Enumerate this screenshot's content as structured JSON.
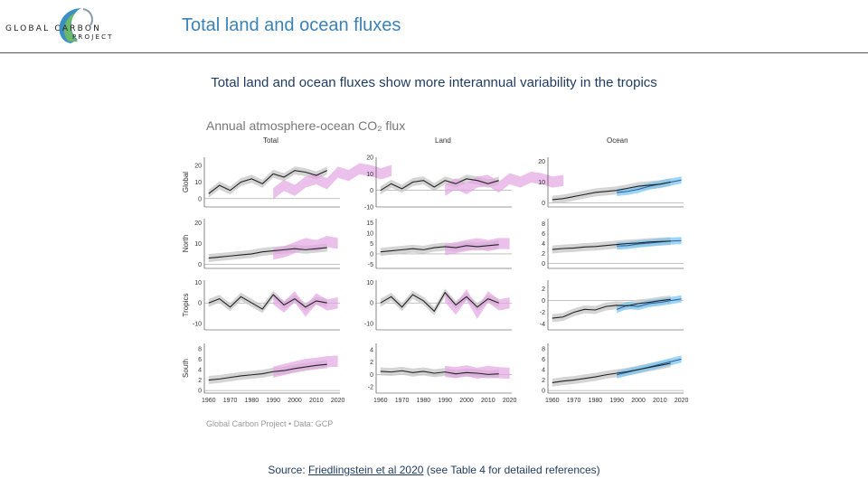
{
  "logo": {
    "line1": "GLOBAL CARBON",
    "line2": "PROJECT",
    "colors": [
      "#3b8fc4",
      "#6cb86a",
      "#8a9aa8"
    ]
  },
  "header": {
    "title": "Total land and ocean fluxes"
  },
  "subtitle": "Total land and ocean fluxes show more interannual variability in the tropics",
  "source": {
    "prefix": "Source: ",
    "link_text": "Friedlingstein et al 2020",
    "suffix": " (see Table 4 for detailed references)"
  },
  "chart_data": {
    "type": "line",
    "title": "Annual atmosphere-ocean CO₂ flux",
    "credit": "Global Carbon Project • Data: GCP",
    "columns": [
      "Total",
      "Land",
      "Ocean"
    ],
    "rows": [
      "Global",
      "North",
      "Tropics",
      "South"
    ],
    "x_ticks": [
      1960,
      1970,
      1980,
      1990,
      2000,
      2010,
      2020
    ],
    "xlim": [
      1958,
      2021
    ],
    "colors": {
      "model_band": "#c9c9c9",
      "model_line": "#222222",
      "atm_band": "#e3a6e3",
      "ocean_band": "#74c5ef",
      "ocean_line": "#2f5aa0"
    },
    "panels": [
      {
        "row": "Global",
        "col": "Total",
        "ylim": [
          -5,
          25
        ],
        "y_ticks": [
          0,
          10,
          20
        ],
        "start": 1960,
        "step": 5,
        "line": [
          3,
          8,
          5,
          10,
          12,
          9,
          15,
          13,
          17,
          16,
          14,
          17
        ],
        "atm": [
          3,
          8,
          5,
          10,
          12,
          9,
          16,
          14,
          18,
          17,
          15,
          17
        ]
      },
      {
        "row": "Global",
        "col": "Land",
        "ylim": [
          -10,
          20
        ],
        "y_ticks": [
          -10,
          0,
          10,
          20
        ],
        "start": 1960,
        "step": 5,
        "line": [
          0,
          4,
          1,
          5,
          6,
          2,
          6,
          4,
          7,
          6,
          4,
          6
        ],
        "atm": [
          0,
          4,
          1,
          5,
          6,
          2,
          7,
          5,
          8,
          7,
          5,
          6
        ]
      },
      {
        "row": "Global",
        "col": "Ocean",
        "ylim": [
          -2,
          22
        ],
        "y_ticks": [
          0,
          10,
          20
        ],
        "start": 1960,
        "step": 5,
        "line": [
          1.5,
          2,
          3,
          4,
          5,
          5.5,
          6,
          7,
          8,
          8.5,
          9,
          10
        ],
        "obs": [
          5,
          5.5,
          6.5,
          8,
          9,
          10,
          11
        ]
      },
      {
        "row": "North",
        "col": "Total",
        "ylim": [
          -2,
          22
        ],
        "y_ticks": [
          0,
          10,
          20
        ],
        "start": 1960,
        "step": 5,
        "line": [
          3,
          3.5,
          4,
          4.5,
          5,
          6,
          6.5,
          7,
          7.5,
          7,
          7.5,
          8
        ],
        "atm": [
          5,
          6,
          8,
          10,
          9,
          11,
          10
        ]
      },
      {
        "row": "North",
        "col": "Land",
        "ylim": [
          -7,
          17
        ],
        "y_ticks": [
          -5,
          0,
          5,
          10,
          15
        ],
        "start": 1960,
        "step": 5,
        "line": [
          1,
          1.5,
          2,
          2.5,
          2,
          3,
          3.5,
          3,
          4,
          3.5,
          4,
          4.5
        ],
        "atm": [
          2,
          3,
          4,
          5,
          4,
          5,
          5
        ]
      },
      {
        "row": "North",
        "col": "Ocean",
        "ylim": [
          -1,
          9
        ],
        "y_ticks": [
          0,
          2,
          4,
          6,
          8
        ],
        "start": 1960,
        "step": 5,
        "line": [
          2.8,
          3,
          3.1,
          3.3,
          3.4,
          3.6,
          3.8,
          4,
          4.1,
          4.3,
          4.4,
          4.5
        ],
        "obs": [
          3.5,
          3.6,
          3.9,
          4.1,
          4.3,
          4.5,
          4.6
        ]
      },
      {
        "row": "Tropics",
        "col": "Total",
        "ylim": [
          -13,
          11
        ],
        "y_ticks": [
          -10,
          0,
          10
        ],
        "start": 1960,
        "step": 5,
        "line": [
          0,
          2,
          -2,
          3,
          0,
          -3,
          4,
          -1,
          2,
          -2,
          1,
          0
        ],
        "atm": [
          2,
          -2,
          3,
          -4,
          2,
          -1,
          0
        ]
      },
      {
        "row": "Tropics",
        "col": "Land",
        "ylim": [
          -13,
          11
        ],
        "y_ticks": [
          -10,
          0,
          10
        ],
        "start": 1960,
        "step": 5,
        "line": [
          0,
          3,
          -2,
          4,
          1,
          -4,
          5,
          -1,
          3,
          -2,
          2,
          0
        ],
        "atm": [
          3,
          -3,
          4,
          -5,
          3,
          -1,
          0
        ]
      },
      {
        "row": "Tropics",
        "col": "Ocean",
        "ylim": [
          -5,
          3.5
        ],
        "y_ticks": [
          -4,
          -2,
          0,
          2
        ],
        "start": 1960,
        "step": 5,
        "line": [
          -3,
          -2.8,
          -2,
          -1.5,
          -1.6,
          -1,
          -0.8,
          -0.9,
          -0.5,
          -0.3,
          0,
          0.2
        ],
        "obs": [
          -1.5,
          -0.8,
          -1,
          -0.5,
          -0.3,
          0,
          0.3
        ]
      },
      {
        "row": "South",
        "col": "Total",
        "ylim": [
          -0.5,
          9
        ],
        "y_ticks": [
          0,
          2,
          4,
          6,
          8
        ],
        "start": 1960,
        "step": 5,
        "line": [
          2,
          2.2,
          2.5,
          2.8,
          3,
          3.2,
          3.6,
          3.8,
          4.2,
          4.5,
          4.8,
          5
        ],
        "atm": [
          3.5,
          4,
          4.5,
          5,
          5.2,
          5.5,
          5.6
        ]
      },
      {
        "row": "South",
        "col": "Land",
        "ylim": [
          -3,
          5
        ],
        "y_ticks": [
          -2,
          0,
          2,
          4
        ],
        "start": 1960,
        "step": 5,
        "line": [
          0.5,
          0.4,
          0.6,
          0.3,
          0.5,
          0.2,
          0.4,
          0.1,
          0.3,
          0.2,
          0,
          0.1
        ],
        "atm": [
          0.5,
          0.3,
          0.6,
          0.2,
          0.5,
          0.3,
          0.2
        ]
      },
      {
        "row": "South",
        "col": "Ocean",
        "ylim": [
          -0.5,
          9
        ],
        "y_ticks": [
          0,
          2,
          4,
          6,
          8
        ],
        "start": 1960,
        "step": 5,
        "line": [
          1.5,
          1.8,
          2,
          2.3,
          2.6,
          3,
          3.3,
          3.6,
          4,
          4.4,
          4.8,
          5.2
        ],
        "obs": [
          3,
          3.5,
          4,
          4.5,
          5,
          5.5,
          6
        ]
      }
    ]
  }
}
